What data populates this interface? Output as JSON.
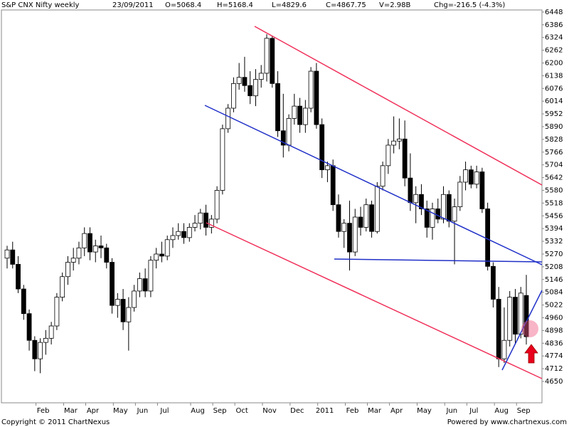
{
  "chart_data": {
    "type": "candlestick",
    "title": "S&P CNX Nifty weekly",
    "header": [
      "23/09/2011",
      "O=5068.4",
      "H=5168.4",
      "L=4829.6",
      "C=4867.75",
      "V=2.98B",
      "Chg=-216.5 (-4.3%)"
    ],
    "copyright": "Copyright © 2011 ChartNexus",
    "powered": "Powered by www.chartnexus.com",
    "ylim": [
      4546,
      6458
    ],
    "yticks": [
      4650,
      4712,
      4774,
      4836,
      4898,
      4960,
      5022,
      5084,
      5146,
      5208,
      5270,
      5332,
      5394,
      5456,
      5518,
      5580,
      5642,
      5704,
      5766,
      5828,
      5890,
      5952,
      6014,
      6076,
      6138,
      6200,
      6262,
      6324,
      6386,
      6448
    ],
    "categories": [
      null,
      null,
      null,
      null,
      null,
      null,
      "Feb",
      null,
      null,
      null,
      null,
      "Mar",
      null,
      null,
      null,
      "Apr",
      null,
      null,
      null,
      null,
      "May",
      null,
      null,
      null,
      "Jun",
      null,
      null,
      null,
      "Jul",
      null,
      null,
      null,
      null,
      null,
      "Aug",
      null,
      null,
      null,
      "Sep",
      null,
      null,
      null,
      "Oct",
      null,
      null,
      null,
      null,
      "Nov",
      null,
      null,
      null,
      null,
      "Dec",
      null,
      null,
      null,
      null,
      "2011",
      null,
      null,
      null,
      null,
      "Feb",
      null,
      null,
      null,
      "Mar",
      null,
      null,
      null,
      "Apr",
      null,
      null,
      null,
      null,
      "May",
      null,
      null,
      null,
      null,
      "Jun",
      null,
      null,
      null,
      "Jul",
      null,
      null,
      null,
      null,
      "Aug",
      null,
      null,
      null,
      "Sep",
      null
    ],
    "open": [
      5250,
      5290,
      5220,
      5100,
      4980,
      4850,
      4760,
      4840,
      4860,
      4920,
      5060,
      5160,
      5230,
      5250,
      5300,
      5370,
      5280,
      5310,
      5300,
      5230,
      5020,
      5050,
      4940,
      5010,
      5090,
      5150,
      5090,
      5240,
      5270,
      5260,
      5340,
      5360,
      5380,
      5350,
      5400,
      5420,
      5470,
      5400,
      5440,
      5580,
      5880,
      5980,
      6100,
      6130,
      6090,
      6040,
      6120,
      6150,
      6320,
      6100,
      5870,
      5800,
      5930,
      5990,
      5900,
      5980,
      6160,
      5900,
      5680,
      5700,
      5510,
      5380,
      5420,
      5280,
      5450,
      5400,
      5510,
      5380,
      5600,
      5700,
      5800,
      5820,
      5830,
      5640,
      5520,
      5560,
      5490,
      5400,
      5490,
      5440,
      5560,
      5430,
      5500,
      5620,
      5680,
      5610,
      5670,
      5490,
      5210,
      5050,
      4760,
      4850,
      5060,
      4880,
      5068.4
    ],
    "high": [
      5310,
      5330,
      5260,
      5120,
      5000,
      4870,
      4860,
      4900,
      4940,
      5080,
      5180,
      5260,
      5300,
      5330,
      5400,
      5400,
      5340,
      5360,
      5320,
      5250,
      5080,
      5100,
      5060,
      5120,
      5180,
      5200,
      5260,
      5300,
      5330,
      5360,
      5400,
      5420,
      5420,
      5420,
      5460,
      5490,
      5510,
      5460,
      5600,
      5900,
      6000,
      6130,
      6200,
      6230,
      6160,
      6170,
      6190,
      6340,
      6330,
      6160,
      6050,
      5950,
      6050,
      6030,
      6020,
      6180,
      6200,
      5930,
      5720,
      5730,
      5560,
      5440,
      5530,
      5490,
      5500,
      5540,
      5530,
      5620,
      5720,
      5830,
      5940,
      5930,
      5920,
      5760,
      5600,
      5610,
      5530,
      5520,
      5540,
      5600,
      5580,
      5540,
      5650,
      5720,
      5700,
      5700,
      5690,
      5520,
      5230,
      5110,
      5010,
      5090,
      5100,
      5110,
      5168.4
    ],
    "low": [
      5200,
      5200,
      5080,
      4950,
      4800,
      4700,
      4690,
      4780,
      4830,
      4900,
      5040,
      5120,
      5190,
      5220,
      5260,
      5240,
      5230,
      5250,
      5200,
      4980,
      4960,
      4900,
      4800,
      4990,
      5060,
      5060,
      5060,
      5200,
      5230,
      5240,
      5300,
      5340,
      5320,
      5330,
      5380,
      5390,
      5360,
      5370,
      5420,
      5560,
      5860,
      5960,
      6070,
      6060,
      6000,
      5990,
      6080,
      6110,
      6080,
      5840,
      5740,
      5770,
      5900,
      5860,
      5860,
      5960,
      5880,
      5640,
      5620,
      5480,
      5350,
      5300,
      5190,
      5260,
      5360,
      5380,
      5350,
      5370,
      5580,
      5660,
      5760,
      5780,
      5600,
      5480,
      5420,
      5460,
      5350,
      5340,
      5420,
      5420,
      5400,
      5220,
      5480,
      5580,
      5590,
      5590,
      5470,
      5190,
      5010,
      4720,
      4740,
      4820,
      4830,
      4860,
      4829.6
    ],
    "close": [
      5290,
      5220,
      5100,
      4980,
      4850,
      4760,
      4840,
      4860,
      4920,
      5060,
      5160,
      5230,
      5250,
      5300,
      5370,
      5280,
      5310,
      5300,
      5230,
      5020,
      5050,
      4940,
      5010,
      5090,
      5150,
      5090,
      5240,
      5270,
      5260,
      5340,
      5360,
      5380,
      5350,
      5400,
      5420,
      5470,
      5400,
      5440,
      5580,
      5880,
      5980,
      6100,
      6130,
      6090,
      6040,
      6120,
      6150,
      6320,
      6100,
      5870,
      5800,
      5930,
      5990,
      5900,
      5980,
      6160,
      5900,
      5680,
      5700,
      5510,
      5380,
      5420,
      5280,
      5450,
      5400,
      5510,
      5380,
      5600,
      5700,
      5800,
      5820,
      5830,
      5640,
      5520,
      5560,
      5490,
      5400,
      5490,
      5440,
      5560,
      5430,
      5500,
      5620,
      5680,
      5610,
      5670,
      5490,
      5210,
      5050,
      4760,
      4850,
      5060,
      4880,
      5080,
      4867.75
    ]
  }
}
